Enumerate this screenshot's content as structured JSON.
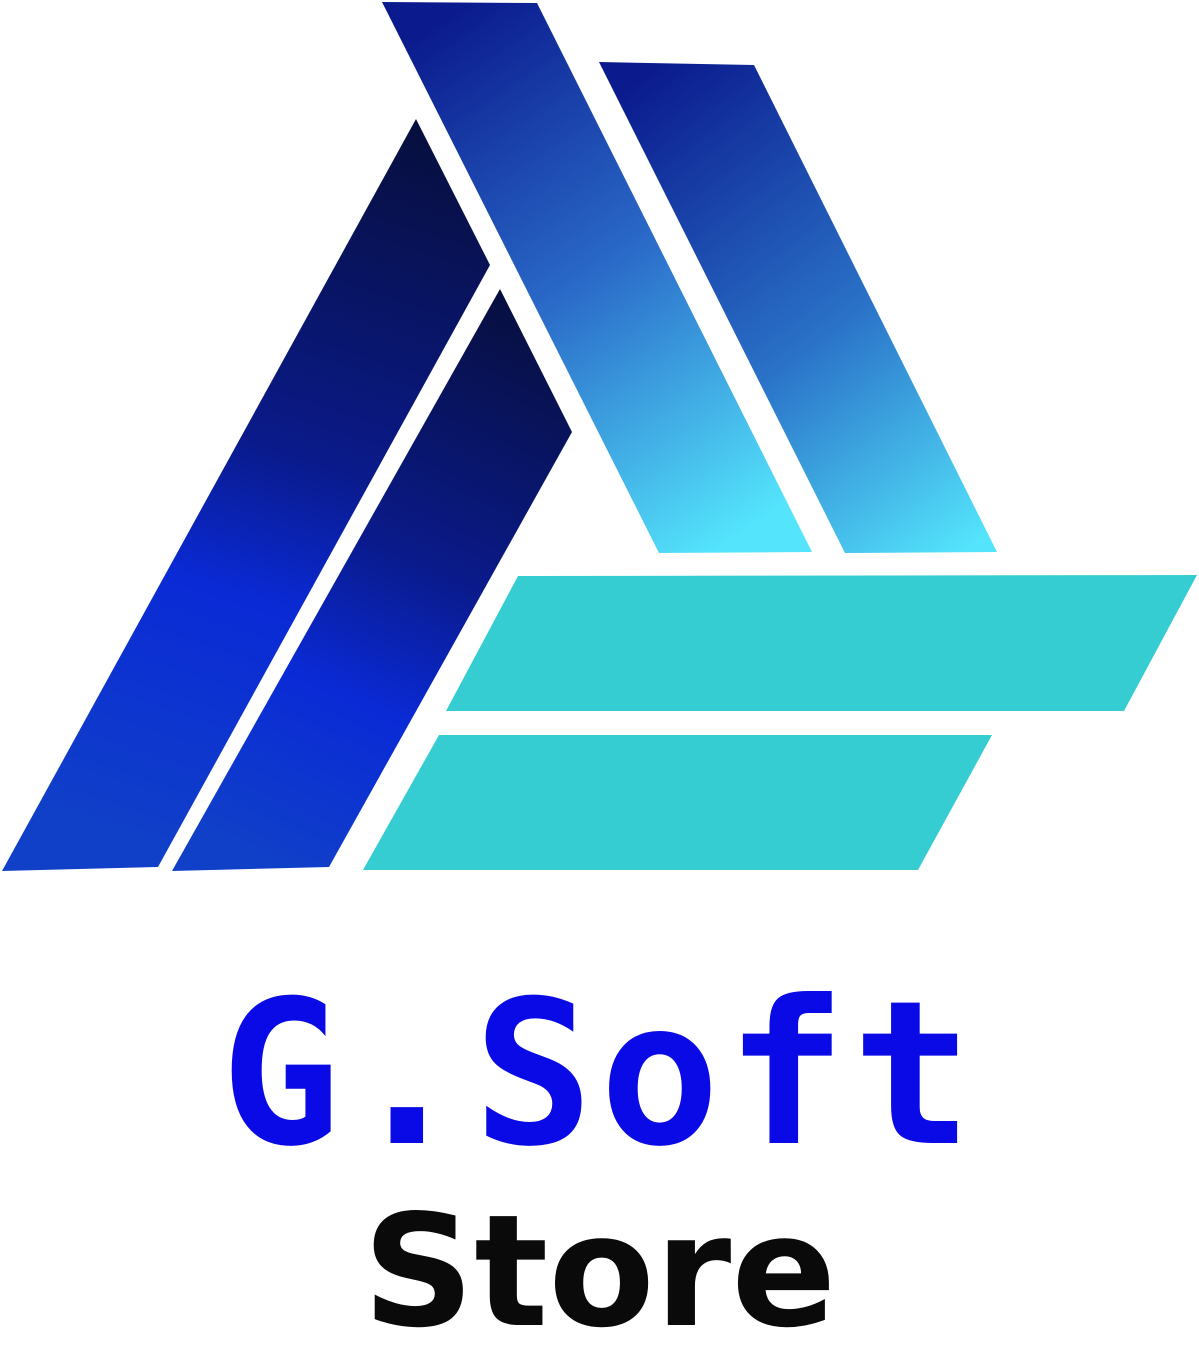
{
  "logo": {
    "brand_name": "G.Soft",
    "brand_sub": "Store",
    "icon": "abstract-a-triangle-mark",
    "colors": {
      "brand_blue": "#0a0ae6",
      "sub_text": "#0a0a0a",
      "navy": "#070f3e",
      "royal_blue": "#0a2ad6",
      "deep_blue": "#0b1b8e",
      "sky": "#54e4fc",
      "teal": "#35cdd1",
      "background": "#ffffff"
    }
  }
}
